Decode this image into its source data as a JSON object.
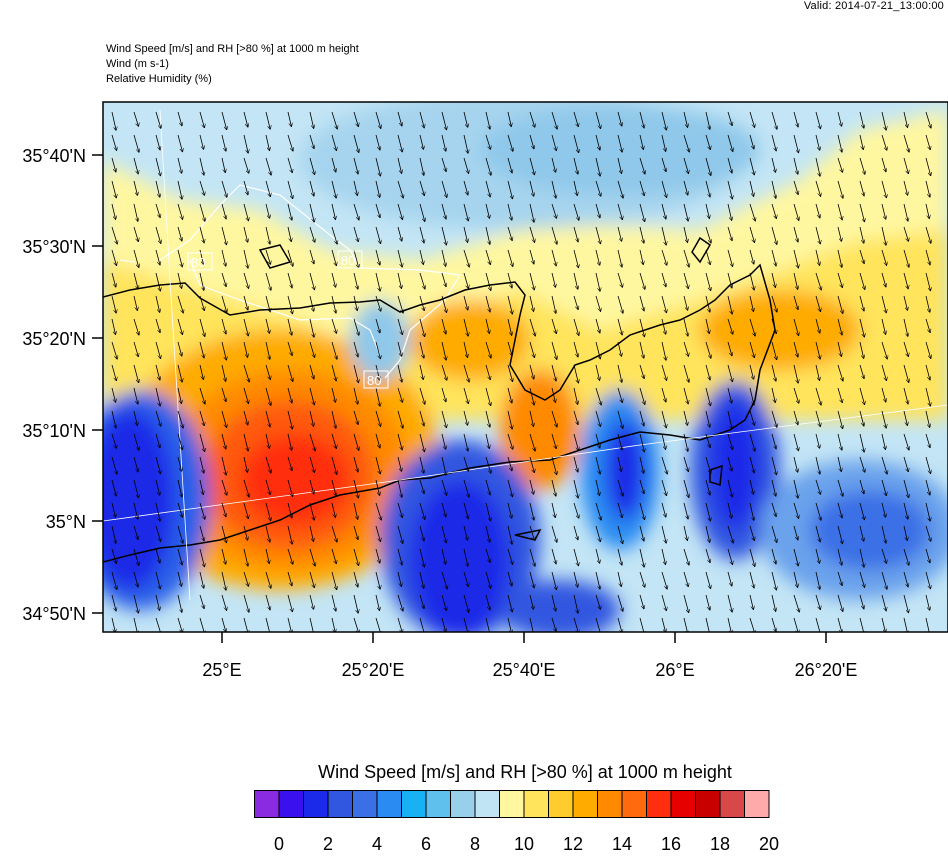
{
  "valid_time": "Valid: 2014-07-21_13:00:00",
  "title_lines": [
    "Wind Speed [m/s] and RH [>80 %] at 1000 m height",
    "Wind   (m s-1)",
    "Relative Humidity   (%)"
  ],
  "map": {
    "lat_labels": [
      "35°40'N",
      "35°30'N",
      "35°20'N",
      "35°10'N",
      "35°N",
      "34°50'N"
    ],
    "lon_labels": [
      "25°E",
      "25°20'E",
      "25°40'E",
      "26°E",
      "26°20'E"
    ],
    "contour_labels": [
      "80",
      "80",
      "80"
    ]
  },
  "colorbar": {
    "title": "Wind Speed [m/s] and RH [>80 %] at 1000 m height",
    "colors": [
      "#8a2be2",
      "#3a10ee",
      "#1a2ae8",
      "#3156e0",
      "#3a6fe6",
      "#2a8cf2",
      "#18b2f4",
      "#5fc0ee",
      "#98d0ec",
      "#c0e4f4",
      "#fff7a0",
      "#ffe45c",
      "#ffcc2e",
      "#ffab00",
      "#ff8a00",
      "#ff6a0e",
      "#ff2e0e",
      "#e60000",
      "#c80000",
      "#d84848",
      "#ffaaaa"
    ],
    "tick_labels": [
      "0",
      "2",
      "4",
      "6",
      "8",
      "10",
      "12",
      "14",
      "16",
      "18",
      "20"
    ]
  }
}
